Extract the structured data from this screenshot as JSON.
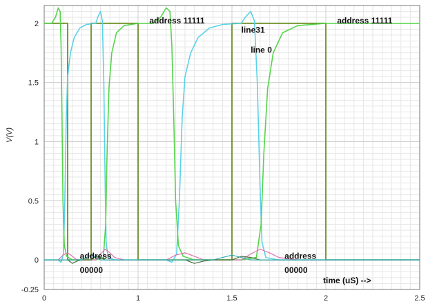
{
  "chart_data": {
    "type": "line",
    "title": "",
    "xlabel": "time (uS) -->",
    "ylabel": "V(V)",
    "xlim": [
      0,
      2.5
    ],
    "ylim": [
      -0.25,
      2.15
    ],
    "grid": true,
    "x_ticks": [
      "0",
      "1",
      "1.5",
      "2",
      "2.5"
    ],
    "x_tick_values": [
      0,
      1,
      1.5,
      2,
      2.5
    ],
    "y_ticks": [
      "-0.25",
      "0",
      "0.5",
      "1",
      "1.5",
      "2"
    ],
    "y_tick_values": [
      -0.25,
      0,
      0.5,
      1,
      1.5,
      2
    ],
    "colors": {
      "address": "#6b8e23",
      "line31": "#5ad2e8",
      "line0": "#55d44a",
      "pink": "#e070b0",
      "dark": "#4a6b3a",
      "cyan_low": "#30a8a8"
    },
    "annotations": [
      {
        "text": "address 11111",
        "x": 1.06,
        "y": 2.0
      },
      {
        "text": "line31",
        "x": 1.55,
        "y": 1.92
      },
      {
        "text": "line 0",
        "x": 1.6,
        "y": 1.75
      },
      {
        "text": "address 11111",
        "x": 2.06,
        "y": 2.0
      },
      {
        "text": "address",
        "x": 0.38,
        "y": 0.01
      },
      {
        "text": "00000",
        "x": 0.38,
        "y": -0.11
      },
      {
        "text": "address",
        "x": 1.78,
        "y": 0.01
      },
      {
        "text": "00000",
        "x": 1.78,
        "y": -0.11
      }
    ],
    "series": [
      {
        "key": "address",
        "points": [
          [
            0,
            2
          ],
          [
            0.25,
            2
          ],
          [
            0.25,
            0
          ],
          [
            0.5,
            0
          ],
          [
            0.5,
            2
          ],
          [
            1,
            2
          ],
          [
            1,
            0
          ],
          [
            1.5,
            0
          ],
          [
            1.5,
            2
          ],
          [
            2,
            2
          ],
          [
            2,
            0
          ],
          [
            2.5,
            0
          ]
        ]
      },
      {
        "key": "line31",
        "points": [
          [
            0,
            0
          ],
          [
            0.15,
            0
          ],
          [
            0.18,
            -0.02
          ],
          [
            0.205,
            0.05
          ],
          [
            0.22,
            0.5
          ],
          [
            0.235,
            1.2
          ],
          [
            0.25,
            1.55
          ],
          [
            0.28,
            1.75
          ],
          [
            0.32,
            1.88
          ],
          [
            0.38,
            1.96
          ],
          [
            0.45,
            1.99
          ],
          [
            0.55,
            2
          ],
          [
            0.55,
            2
          ],
          [
            0.57,
            2.05
          ],
          [
            0.6,
            2.1
          ],
          [
            0.62,
            2.02
          ],
          [
            0.635,
            1.5
          ],
          [
            0.65,
            0.6
          ],
          [
            0.66,
            0.15
          ],
          [
            0.68,
            0.02
          ],
          [
            0.75,
            0
          ],
          [
            1,
            0
          ],
          [
            1.15,
            0
          ],
          [
            1.18,
            -0.02
          ],
          [
            1.205,
            0.05
          ],
          [
            1.22,
            0.5
          ],
          [
            1.235,
            1.2
          ],
          [
            1.25,
            1.55
          ],
          [
            1.28,
            1.75
          ],
          [
            1.32,
            1.88
          ],
          [
            1.38,
            1.96
          ],
          [
            1.45,
            1.99
          ],
          [
            1.55,
            2
          ],
          [
            1.57,
            2.05
          ],
          [
            1.6,
            2.1
          ],
          [
            1.62,
            2.02
          ],
          [
            1.635,
            1.5
          ],
          [
            1.65,
            0.6
          ],
          [
            1.66,
            0.15
          ],
          [
            1.68,
            0.02
          ],
          [
            1.75,
            0
          ],
          [
            2.5,
            0
          ]
        ]
      },
      {
        "key": "line0",
        "points": [
          [
            0,
            2
          ],
          [
            0.08,
            2
          ],
          [
            0.12,
            2.05
          ],
          [
            0.15,
            2.13
          ],
          [
            0.17,
            2.1
          ],
          [
            0.18,
            1.8
          ],
          [
            0.19,
            1.2
          ],
          [
            0.2,
            0.5
          ],
          [
            0.215,
            0.12
          ],
          [
            0.24,
            0.03
          ],
          [
            0.3,
            0
          ],
          [
            0.55,
            0
          ],
          [
            0.63,
            0.02
          ],
          [
            0.655,
            0.3
          ],
          [
            0.67,
            0.9
          ],
          [
            0.69,
            1.45
          ],
          [
            0.72,
            1.75
          ],
          [
            0.77,
            1.92
          ],
          [
            0.85,
            1.98
          ],
          [
            1,
            2
          ],
          [
            1.08,
            2
          ],
          [
            1.12,
            2.05
          ],
          [
            1.15,
            2.13
          ],
          [
            1.17,
            2.1
          ],
          [
            1.18,
            1.8
          ],
          [
            1.19,
            1.2
          ],
          [
            1.2,
            0.5
          ],
          [
            1.215,
            0.12
          ],
          [
            1.24,
            0.03
          ],
          [
            1.3,
            0
          ],
          [
            1.55,
            0
          ],
          [
            1.63,
            0.02
          ],
          [
            1.655,
            0.3
          ],
          [
            1.67,
            0.9
          ],
          [
            1.69,
            1.45
          ],
          [
            1.72,
            1.75
          ],
          [
            1.77,
            1.92
          ],
          [
            1.85,
            1.98
          ],
          [
            2,
            2
          ],
          [
            2.5,
            2
          ]
        ]
      },
      {
        "key": "pink",
        "points": [
          [
            0,
            0
          ],
          [
            0.15,
            0.0
          ],
          [
            0.2,
            0.04
          ],
          [
            0.25,
            0.06
          ],
          [
            0.3,
            0.03
          ],
          [
            0.35,
            0
          ],
          [
            0.55,
            0
          ],
          [
            0.6,
            0.05
          ],
          [
            0.65,
            0.09
          ],
          [
            0.7,
            0.06
          ],
          [
            0.75,
            0.02
          ],
          [
            0.85,
            0
          ],
          [
            1,
            0
          ],
          [
            1.15,
            0
          ],
          [
            1.2,
            0.04
          ],
          [
            1.25,
            0.06
          ],
          [
            1.3,
            0.03
          ],
          [
            1.35,
            0
          ],
          [
            1.55,
            0
          ],
          [
            1.6,
            0.05
          ],
          [
            1.65,
            0.09
          ],
          [
            1.7,
            0.06
          ],
          [
            1.75,
            0.02
          ],
          [
            1.85,
            0
          ],
          [
            2.5,
            0
          ]
        ]
      },
      {
        "key": "dark",
        "points": [
          [
            0,
            0
          ],
          [
            0.25,
            0
          ],
          [
            0.3,
            -0.03
          ],
          [
            0.35,
            -0.01
          ],
          [
            0.4,
            0
          ],
          [
            0.5,
            0
          ],
          [
            0.55,
            0.03
          ],
          [
            0.6,
            0.02
          ],
          [
            0.65,
            0
          ],
          [
            1,
            0
          ],
          [
            1.25,
            0
          ],
          [
            1.3,
            -0.03
          ],
          [
            1.35,
            -0.01
          ],
          [
            1.4,
            0
          ],
          [
            1.5,
            0
          ],
          [
            1.55,
            0.03
          ],
          [
            1.6,
            0.02
          ],
          [
            1.65,
            0
          ],
          [
            2.5,
            0
          ]
        ]
      },
      {
        "key": "cyan_low",
        "points": [
          [
            0,
            0
          ],
          [
            0.4,
            0
          ],
          [
            0.45,
            0.02
          ],
          [
            0.5,
            0.04
          ],
          [
            0.55,
            0.02
          ],
          [
            0.6,
            0
          ],
          [
            1,
            0
          ],
          [
            1.4,
            0
          ],
          [
            1.45,
            0.02
          ],
          [
            1.5,
            0.04
          ],
          [
            1.55,
            0.02
          ],
          [
            1.6,
            0
          ],
          [
            2.5,
            0
          ]
        ]
      }
    ]
  }
}
